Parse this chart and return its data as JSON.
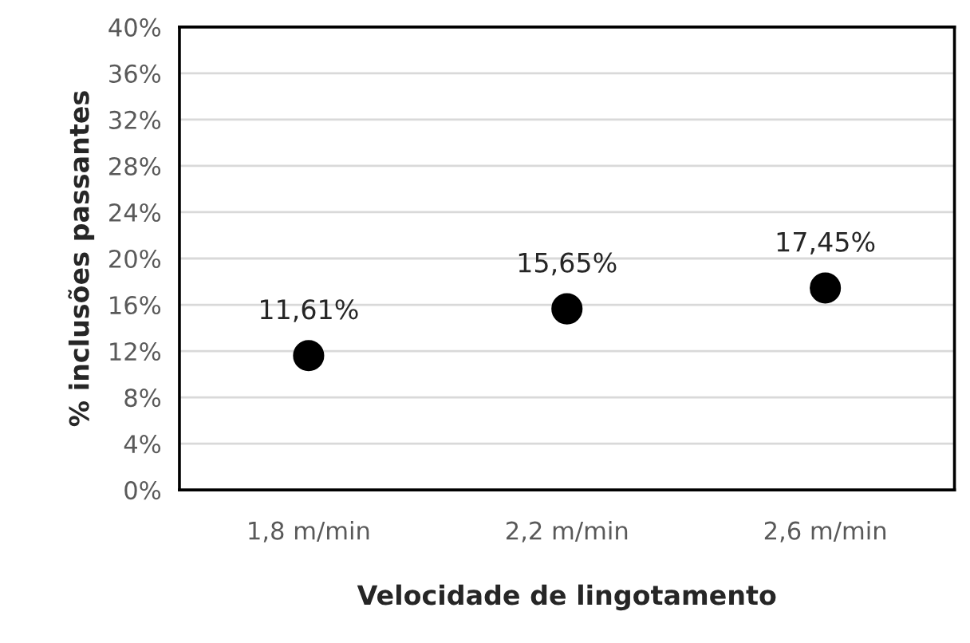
{
  "chart_data": {
    "type": "scatter",
    "xlabel": "Velocidade de lingotamento",
    "ylabel": "% inclusões passantes",
    "categories": [
      "1,8 m/min",
      "2,2 m/min",
      "2,6 m/min"
    ],
    "series": [
      {
        "color": "#000000",
        "values": [
          11.61,
          15.65,
          17.45
        ],
        "value_labels": [
          "11,61%",
          "15,65%",
          "17,45%"
        ]
      }
    ],
    "ylim": [
      0,
      40
    ],
    "yticks": [
      {
        "value": 0,
        "label": "0%"
      },
      {
        "value": 4,
        "label": "4%"
      },
      {
        "value": 8,
        "label": "8%"
      },
      {
        "value": 12,
        "label": "12%"
      },
      {
        "value": 16,
        "label": "16%"
      },
      {
        "value": 20,
        "label": "20%"
      },
      {
        "value": 24,
        "label": "24%"
      },
      {
        "value": 28,
        "label": "28%"
      },
      {
        "value": 32,
        "label": "32%"
      },
      {
        "value": 36,
        "label": "36%"
      },
      {
        "value": 40,
        "label": "40%"
      }
    ],
    "grid": "y",
    "marker": "circle"
  }
}
